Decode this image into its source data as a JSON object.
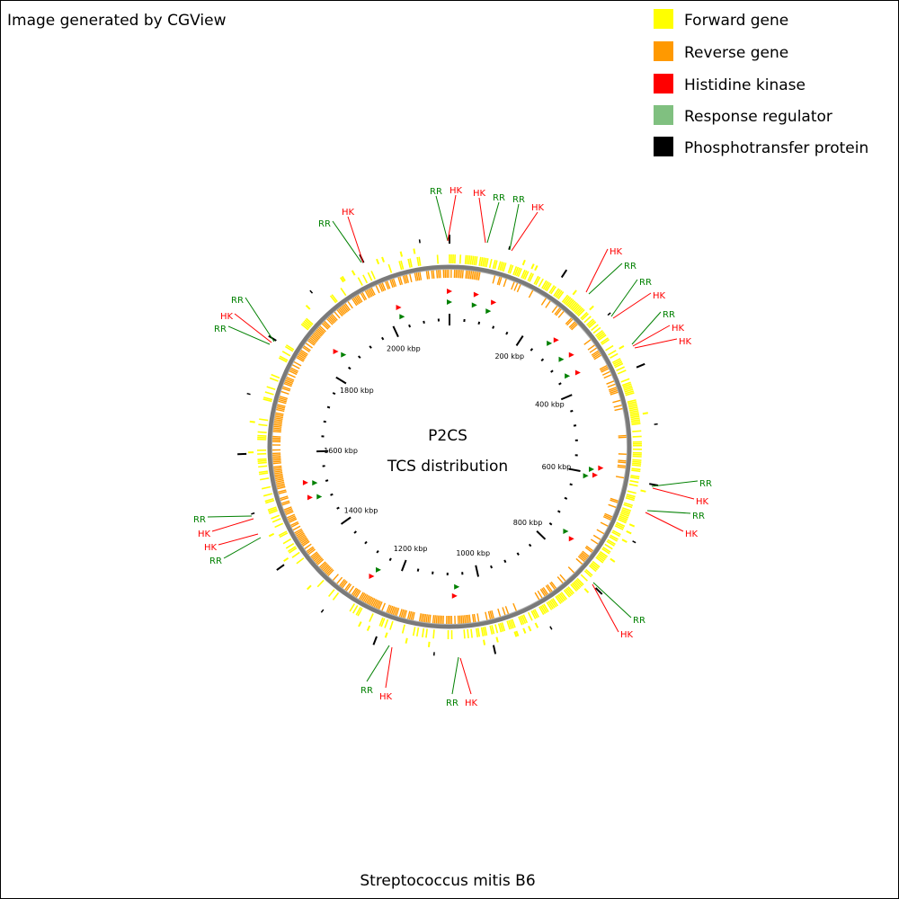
{
  "header": {
    "title": "Image generated by CGView"
  },
  "legend": [
    "Forward gene",
    "Reverse gene",
    "Histidine kinase",
    "Response regulator",
    "Phosphotransfer protein"
  ],
  "center": {
    "title": "P2CS",
    "subtitle": "TCS distribution"
  },
  "scale_labels": [
    "200 kbp",
    "400 kbp",
    "600 kbp",
    "800 kbp",
    "1000 kbp",
    "1200 kbp",
    "1400 kbp",
    "1600 kbp",
    "1800 kbp",
    "2000 kbp"
  ],
  "annotations": [
    "RR",
    "HK",
    "HK",
    "RR",
    "RR",
    "HK",
    "RR",
    "HK",
    "HK",
    "RR",
    "RR",
    "HK",
    "RR",
    "HK",
    "HK",
    "RR",
    "HK",
    "RR",
    "RR",
    "HK",
    "RR",
    "HK",
    "RR",
    "HK",
    "HK",
    "RR",
    "RR",
    "HK",
    "RR",
    "HK",
    "RR",
    "HK"
  ],
  "footer": {
    "caption": "Streptococcus mitis B6"
  }
}
